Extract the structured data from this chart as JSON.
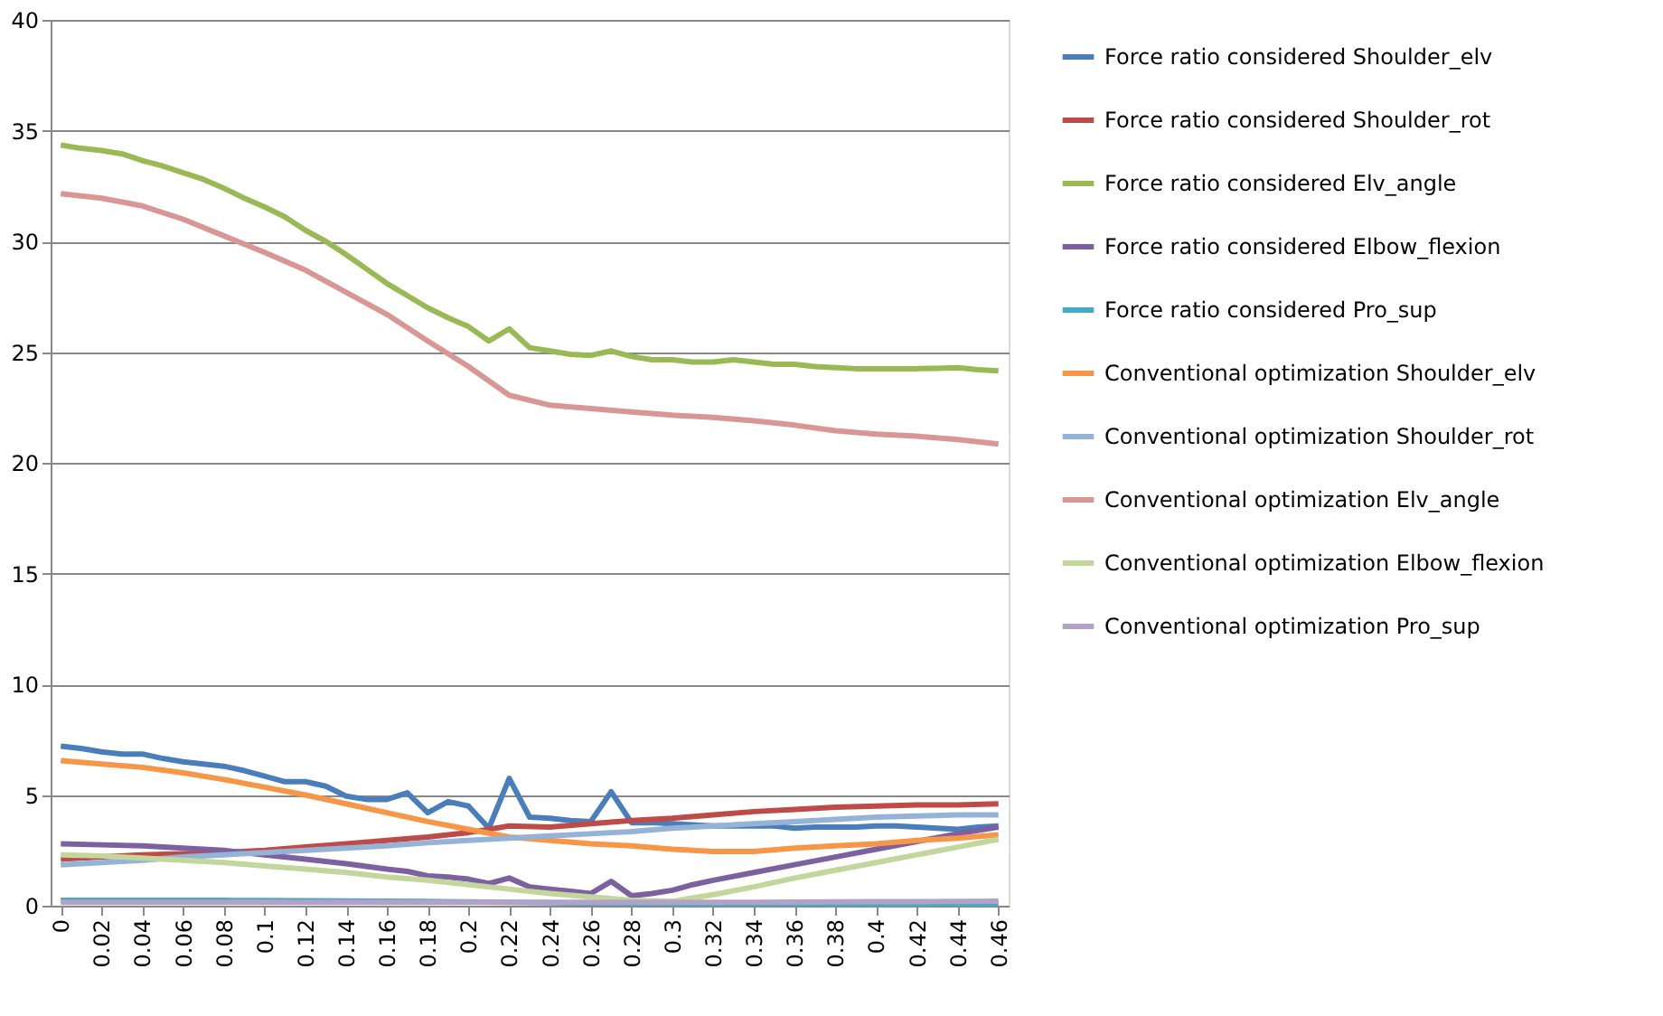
{
  "chart_data": {
    "type": "line",
    "xlim": [
      -0.005,
      0.465
    ],
    "ylim": [
      0,
      40
    ],
    "xticks": [
      0,
      0.02,
      0.04,
      0.06,
      0.08,
      0.1,
      0.12,
      0.14,
      0.16,
      0.18,
      0.2,
      0.22,
      0.24,
      0.26,
      0.28,
      0.3,
      0.32,
      0.34,
      0.36,
      0.38,
      0.4,
      0.42,
      0.44,
      0.46
    ],
    "yticks": [
      0,
      5,
      10,
      15,
      20,
      25,
      30,
      35,
      40
    ],
    "grid": "y",
    "legend": "right",
    "marker": "none",
    "line_style": "solid",
    "x": [
      0,
      0.02,
      0.04,
      0.06,
      0.08,
      0.1,
      0.12,
      0.14,
      0.16,
      0.18,
      0.2,
      0.22,
      0.24,
      0.26,
      0.28,
      0.3,
      0.32,
      0.34,
      0.36,
      0.38,
      0.4,
      0.42,
      0.44,
      0.46
    ],
    "series": [
      {
        "name": "Force ratio considered Shoulder_elv",
        "color": "#4a7ebb",
        "x": [
          0,
          0.01,
          0.02,
          0.03,
          0.04,
          0.05,
          0.06,
          0.07,
          0.08,
          0.09,
          0.1,
          0.11,
          0.12,
          0.13,
          0.14,
          0.15,
          0.16,
          0.17,
          0.18,
          0.19,
          0.2,
          0.21,
          0.22,
          0.23,
          0.24,
          0.25,
          0.26,
          0.27,
          0.28,
          0.29,
          0.3,
          0.31,
          0.32,
          0.33,
          0.34,
          0.35,
          0.36,
          0.37,
          0.38,
          0.39,
          0.4,
          0.41,
          0.42,
          0.43,
          0.44,
          0.45,
          0.46
        ],
        "values": [
          7.2,
          7.1,
          6.95,
          6.85,
          6.85,
          6.65,
          6.5,
          6.4,
          6.3,
          6.1,
          5.85,
          5.6,
          5.6,
          5.4,
          4.95,
          4.8,
          4.8,
          5.1,
          4.2,
          4.7,
          4.5,
          3.5,
          5.75,
          4.0,
          3.95,
          3.85,
          3.8,
          5.15,
          3.75,
          3.75,
          3.7,
          3.65,
          3.6,
          3.6,
          3.6,
          3.6,
          3.5,
          3.55,
          3.55,
          3.55,
          3.6,
          3.6,
          3.55,
          3.5,
          3.45,
          3.55,
          3.6
        ]
      },
      {
        "name": "Force ratio considered Shoulder_rot",
        "color": "#be4b48",
        "values": [
          2.1,
          2.2,
          2.3,
          2.35,
          2.4,
          2.5,
          2.65,
          2.8,
          2.95,
          3.1,
          3.3,
          3.6,
          3.55,
          3.7,
          3.85,
          3.95,
          4.1,
          4.25,
          4.35,
          4.45,
          4.5,
          4.55,
          4.55,
          4.6
        ]
      },
      {
        "name": "Force ratio considered Elv_angle",
        "color": "#98b954",
        "x": [
          0,
          0.01,
          0.02,
          0.03,
          0.04,
          0.05,
          0.06,
          0.07,
          0.08,
          0.09,
          0.1,
          0.11,
          0.12,
          0.13,
          0.14,
          0.15,
          0.16,
          0.17,
          0.18,
          0.19,
          0.2,
          0.21,
          0.22,
          0.23,
          0.24,
          0.25,
          0.26,
          0.27,
          0.28,
          0.29,
          0.3,
          0.31,
          0.32,
          0.33,
          0.34,
          0.35,
          0.36,
          0.37,
          0.38,
          0.39,
          0.4,
          0.41,
          0.42,
          0.43,
          0.44,
          0.45,
          0.46
        ],
        "values": [
          34.35,
          34.2,
          34.1,
          33.95,
          33.65,
          33.4,
          33.1,
          32.8,
          32.4,
          31.95,
          31.55,
          31.1,
          30.5,
          30.0,
          29.4,
          28.75,
          28.1,
          27.55,
          27.0,
          26.55,
          26.15,
          25.5,
          26.05,
          25.2,
          25.05,
          24.9,
          24.85,
          25.05,
          24.8,
          24.65,
          24.65,
          24.55,
          24.55,
          24.65,
          24.55,
          24.45,
          24.45,
          24.35,
          24.3,
          24.25,
          24.25,
          24.25,
          24.25,
          24.27,
          24.3,
          24.2,
          24.15
        ]
      },
      {
        "name": "Force ratio considered Elbow_flexion",
        "color": "#7d60a0",
        "x": [
          0,
          0.02,
          0.04,
          0.06,
          0.08,
          0.1,
          0.12,
          0.14,
          0.16,
          0.17,
          0.18,
          0.19,
          0.2,
          0.21,
          0.22,
          0.23,
          0.24,
          0.25,
          0.26,
          0.27,
          0.28,
          0.29,
          0.3,
          0.31,
          0.32,
          0.34,
          0.36,
          0.38,
          0.4,
          0.42,
          0.44,
          0.46
        ],
        "values": [
          2.8,
          2.75,
          2.7,
          2.6,
          2.5,
          2.3,
          2.1,
          1.9,
          1.65,
          1.55,
          1.35,
          1.3,
          1.2,
          1.0,
          1.25,
          0.85,
          0.75,
          0.65,
          0.55,
          1.1,
          0.45,
          0.55,
          0.7,
          0.95,
          1.15,
          1.5,
          1.85,
          2.2,
          2.55,
          2.9,
          3.25,
          3.55
        ]
      },
      {
        "name": "Force ratio considered Pro_sup",
        "color": "#46aac5",
        "values": [
          0.25,
          0.25,
          0.25,
          0.25,
          0.24,
          0.23,
          0.22,
          0.21,
          0.2,
          0.19,
          0.17,
          0.15,
          0.13,
          0.11,
          0.1,
          0.09,
          0.08,
          0.08,
          0.08,
          0.08,
          0.08,
          0.08,
          0.08,
          0.08
        ]
      },
      {
        "name": "Conventional optimization Shoulder_elv",
        "color": "#f79646",
        "values": [
          6.55,
          6.4,
          6.25,
          6.0,
          5.7,
          5.35,
          5.0,
          4.6,
          4.2,
          3.8,
          3.45,
          3.1,
          2.95,
          2.8,
          2.7,
          2.55,
          2.45,
          2.45,
          2.6,
          2.7,
          2.8,
          2.95,
          3.05,
          3.2
        ]
      },
      {
        "name": "Conventional optimization Shoulder_rot",
        "color": "#95b3d7",
        "values": [
          1.85,
          1.95,
          2.05,
          2.2,
          2.3,
          2.4,
          2.5,
          2.6,
          2.7,
          2.85,
          2.95,
          3.05,
          3.15,
          3.25,
          3.35,
          3.5,
          3.6,
          3.7,
          3.8,
          3.9,
          4.0,
          4.05,
          4.1,
          4.1
        ]
      },
      {
        "name": "Conventional optimization Elv_angle",
        "color": "#d99694",
        "values": [
          32.15,
          31.95,
          31.6,
          31.0,
          30.25,
          29.5,
          28.7,
          27.7,
          26.7,
          25.5,
          24.35,
          23.05,
          22.6,
          22.45,
          22.3,
          22.15,
          22.05,
          21.9,
          21.7,
          21.45,
          21.3,
          21.2,
          21.05,
          20.85
        ]
      },
      {
        "name": "Conventional optimization Elbow_flexion",
        "color": "#c3d69b",
        "values": [
          2.3,
          2.25,
          2.15,
          2.05,
          1.95,
          1.8,
          1.65,
          1.5,
          1.3,
          1.15,
          0.95,
          0.75,
          0.55,
          0.4,
          0.25,
          0.2,
          0.5,
          0.85,
          1.25,
          1.6,
          1.95,
          2.3,
          2.65,
          3.0
        ]
      },
      {
        "name": "Conventional optimization Pro_sup",
        "color": "#b3a2c7",
        "values": [
          0.15,
          0.15,
          0.15,
          0.15,
          0.15,
          0.15,
          0.15,
          0.15,
          0.15,
          0.15,
          0.15,
          0.15,
          0.15,
          0.15,
          0.15,
          0.15,
          0.15,
          0.15,
          0.16,
          0.17,
          0.18,
          0.18,
          0.19,
          0.2
        ]
      }
    ]
  }
}
